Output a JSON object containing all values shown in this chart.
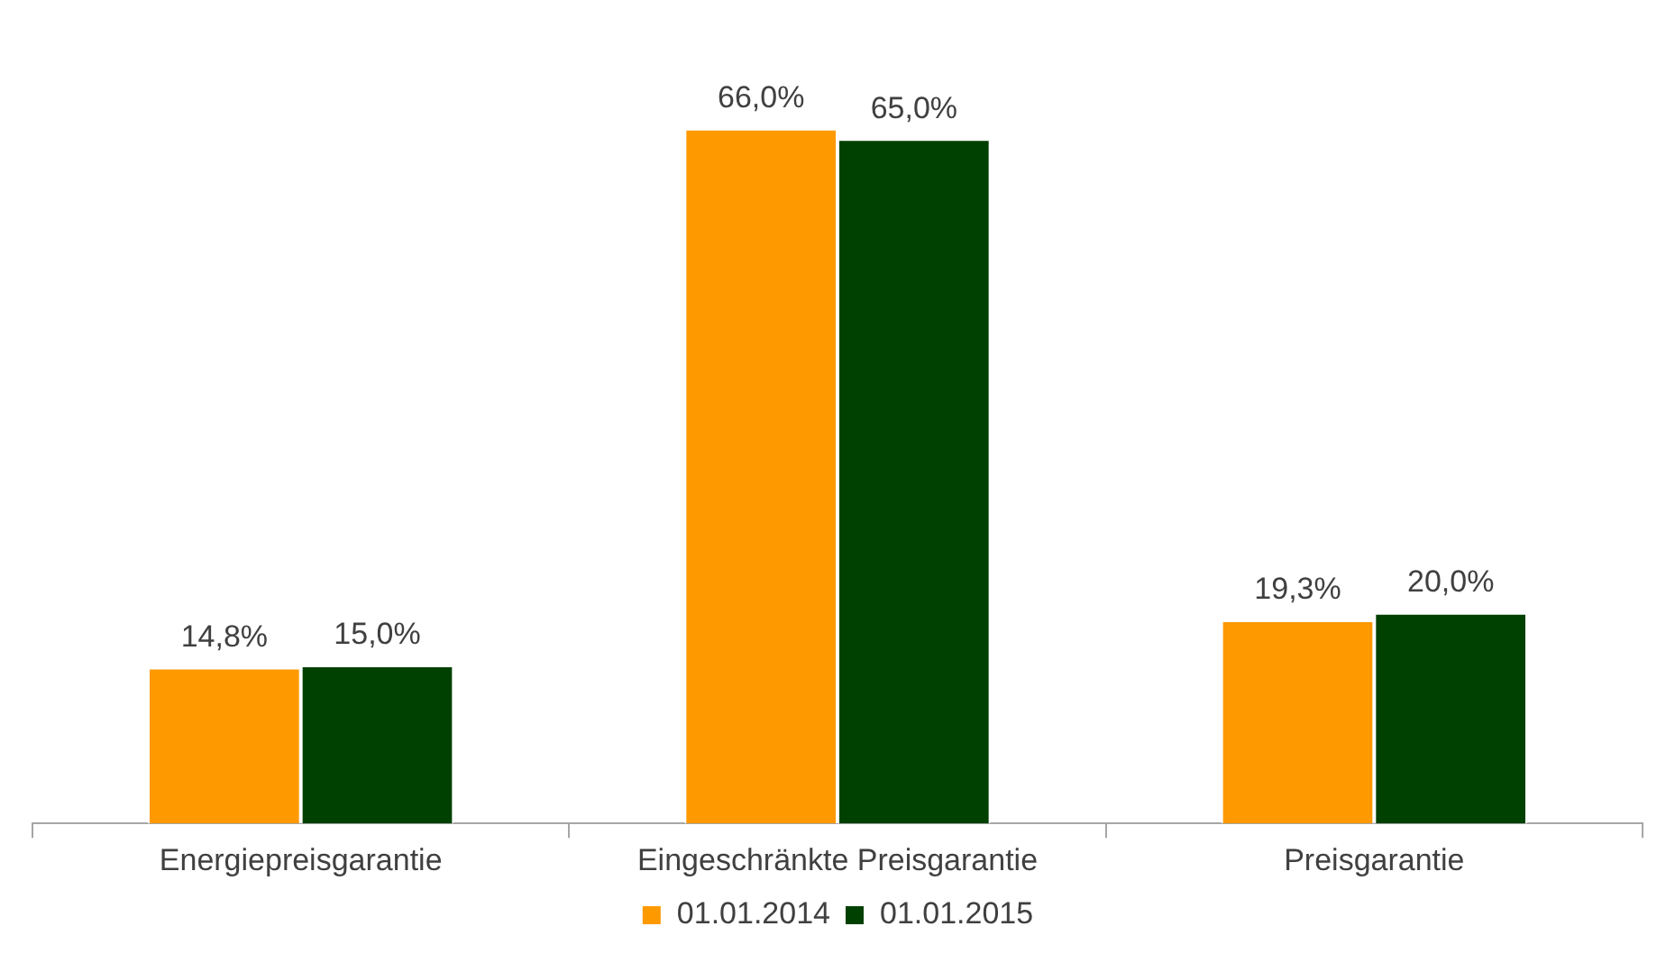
{
  "chart_data": {
    "type": "bar",
    "categories": [
      "Energiepreisgarantie",
      "Eingeschränkte Preisgarantie",
      "Preisgarantie"
    ],
    "series": [
      {
        "name": "01.01.2014",
        "color": "#ff9900",
        "values": [
          14.8,
          66.0,
          19.3
        ],
        "value_labels": [
          "14,8%",
          "66,0%",
          "19,3%"
        ]
      },
      {
        "name": "01.01.2015",
        "color": "#004000",
        "values": [
          15.0,
          65.0,
          20.0
        ],
        "value_labels": [
          "15,0%",
          "65,0%",
          "20,0%"
        ]
      }
    ],
    "legend": "bottom",
    "grid": false
  }
}
